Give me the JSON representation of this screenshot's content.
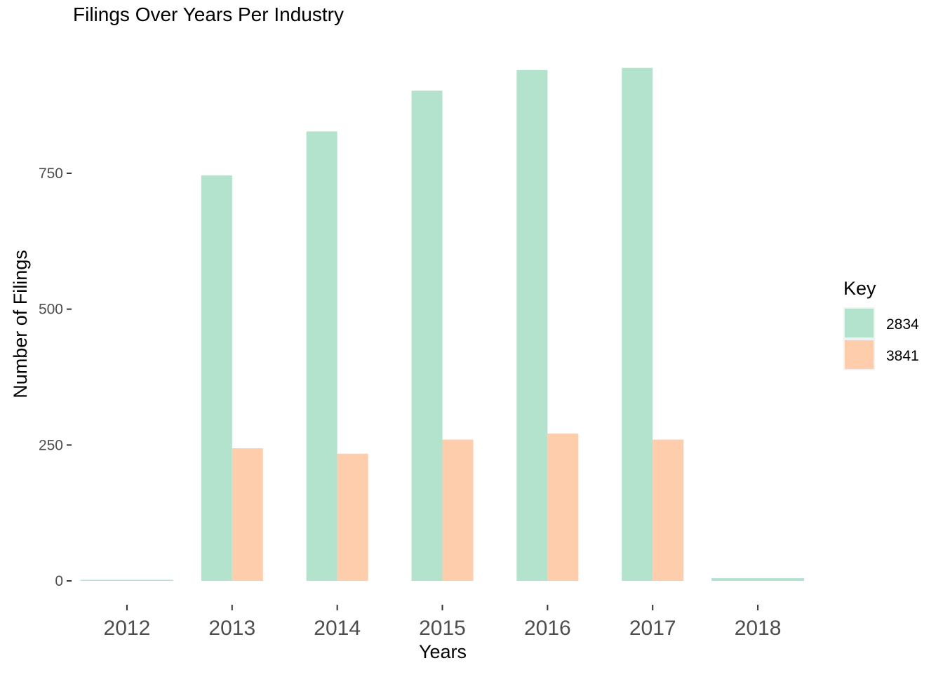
{
  "chart_data": {
    "type": "bar",
    "title": "Filings Over Years Per Industry",
    "xlabel": "Years",
    "ylabel": "Number of Filings",
    "categories": [
      "2012",
      "2013",
      "2014",
      "2015",
      "2016",
      "2017",
      "2018"
    ],
    "series": [
      {
        "name": "2834",
        "color": "#b3e2cd",
        "values": [
          1,
          746,
          827,
          902,
          940,
          944,
          5
        ]
      },
      {
        "name": "3841",
        "color": "#fdcdac",
        "values": [
          0,
          244,
          234,
          260,
          271,
          260,
          0
        ]
      }
    ],
    "ylim": [
      -30,
      950
    ],
    "yticks": [
      0,
      250,
      500,
      750
    ],
    "ytick_labels": [
      "0",
      "250",
      "500",
      "750"
    ],
    "grid": false,
    "legend": {
      "title": "Key",
      "position": "right"
    }
  }
}
